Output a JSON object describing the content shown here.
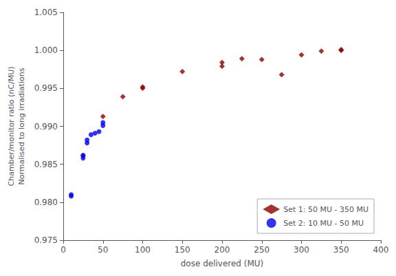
{
  "chart_data": {
    "type": "scatter",
    "xlabel": "dose delivered (MU)",
    "ylabel": "Chamber/monitor ratio (nC/MU)\nNormalised to long irradiations",
    "series": [
      {
        "name": "Set 1: 50 MU - 350 MU",
        "color": "#8B0000",
        "marker": "diamond",
        "x": [
          25,
          50,
          75,
          100,
          100,
          150,
          200,
          200,
          225,
          250,
          275,
          300,
          325,
          350,
          350
        ],
        "values": [
          0.9861,
          0.9913,
          0.9939,
          0.995,
          0.9952,
          0.9972,
          0.9984,
          0.9979,
          0.9989,
          0.9988,
          0.9968,
          0.9994,
          0.9999,
          1.0,
          1.0001
        ]
      },
      {
        "name": "Set 2: 10 MU - 50 MU",
        "color": "#0000EE",
        "marker": "circle",
        "x": [
          10,
          10,
          25,
          25,
          30,
          30,
          35,
          40,
          45,
          50,
          50
        ],
        "values": [
          0.9808,
          0.981,
          0.9858,
          0.9862,
          0.9878,
          0.9882,
          0.9889,
          0.9891,
          0.9893,
          0.9901,
          0.9905
        ]
      }
    ],
    "xlim": [
      0,
      400
    ],
    "ylim": [
      0.975,
      1.005
    ],
    "xticks": [
      0,
      50,
      100,
      150,
      200,
      250,
      300,
      350,
      400
    ],
    "yticks": [
      0.975,
      {
        "value": 0.98,
        "label": "0.980"
      },
      0.985,
      {
        "value": 0.99,
        "label": "0.990"
      },
      0.995,
      {
        "value": 1.0,
        "label": "1.000"
      },
      1.005
    ],
    "grid": false,
    "legend": "lower right"
  }
}
